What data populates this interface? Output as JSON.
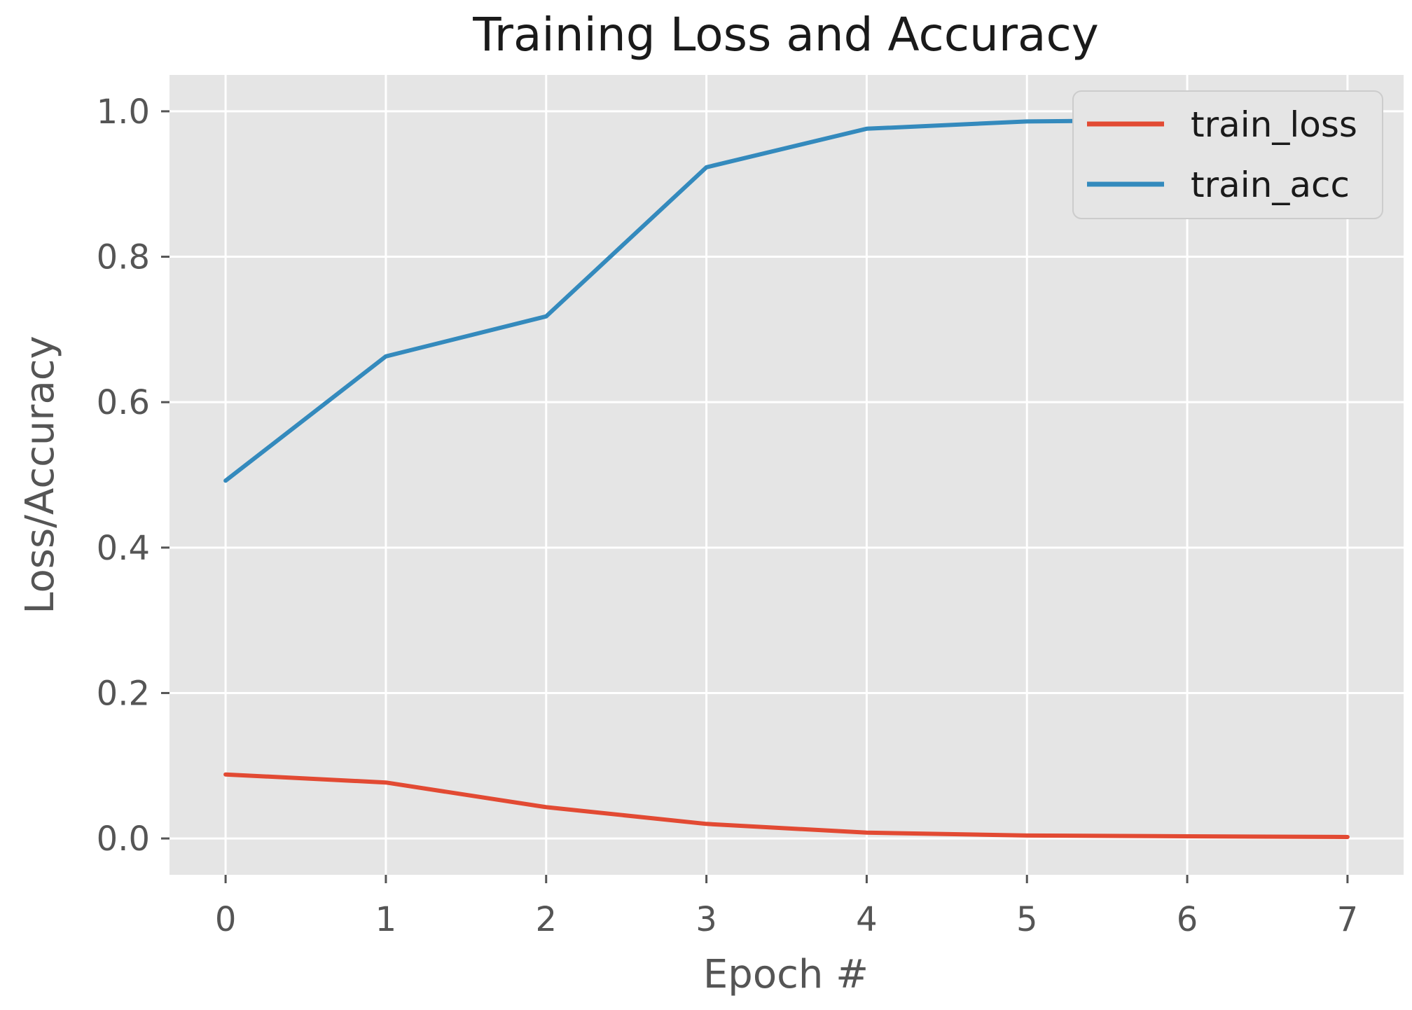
{
  "chart_data": {
    "type": "line",
    "title": "Training Loss and Accuracy",
    "xlabel": "Epoch #",
    "ylabel": "Loss/Accuracy",
    "x": [
      0,
      1,
      2,
      3,
      4,
      5,
      6,
      7
    ],
    "xticks": [
      "0",
      "1",
      "2",
      "3",
      "4",
      "5",
      "6",
      "7"
    ],
    "yticks": [
      "0.0",
      "0.2",
      "0.4",
      "0.6",
      "0.8",
      "1.0"
    ],
    "xlim": [
      -0.35,
      7.35
    ],
    "ylim": [
      -0.05,
      1.05
    ],
    "grid": true,
    "legend_position": "top-right",
    "background_color": "#e5e5e5",
    "grid_color": "#ffffff",
    "series": [
      {
        "name": "train_loss",
        "color": "#e24a33",
        "values": [
          0.088,
          0.077,
          0.043,
          0.02,
          0.008,
          0.004,
          0.003,
          0.002
        ]
      },
      {
        "name": "train_acc",
        "color": "#348abd",
        "values": [
          0.492,
          0.663,
          0.718,
          0.923,
          0.976,
          0.986,
          0.988,
          0.989
        ]
      }
    ]
  }
}
